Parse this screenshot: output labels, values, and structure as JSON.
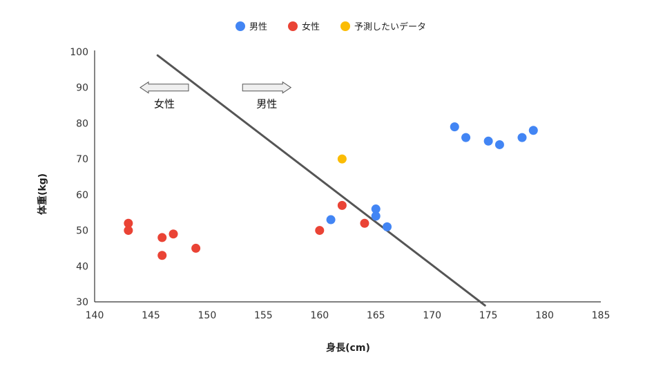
{
  "chart_data": {
    "type": "scatter",
    "title": "",
    "xlabel": "身長(cm)",
    "ylabel": "体重(kg)",
    "xlim": [
      140,
      185
    ],
    "ylim": [
      30,
      100
    ],
    "x_ticks": [
      140,
      145,
      150,
      155,
      160,
      165,
      170,
      175,
      180,
      185
    ],
    "y_ticks": [
      30,
      40,
      50,
      60,
      70,
      80,
      90,
      100
    ],
    "grid": false,
    "legend_position": "top",
    "series": [
      {
        "name": "男性",
        "color": "#4285F4",
        "points": [
          {
            "x": 161,
            "y": 53
          },
          {
            "x": 165,
            "y": 56
          },
          {
            "x": 165,
            "y": 54
          },
          {
            "x": 166,
            "y": 51
          },
          {
            "x": 172,
            "y": 79
          },
          {
            "x": 173,
            "y": 76
          },
          {
            "x": 175,
            "y": 75
          },
          {
            "x": 176,
            "y": 74
          },
          {
            "x": 178,
            "y": 76
          },
          {
            "x": 179,
            "y": 78
          }
        ]
      },
      {
        "name": "女性",
        "color": "#EA4335",
        "points": [
          {
            "x": 143,
            "y": 52
          },
          {
            "x": 143,
            "y": 50
          },
          {
            "x": 146,
            "y": 48
          },
          {
            "x": 146,
            "y": 43
          },
          {
            "x": 147,
            "y": 49
          },
          {
            "x": 149,
            "y": 45
          },
          {
            "x": 160,
            "y": 50
          },
          {
            "x": 162,
            "y": 57
          },
          {
            "x": 164,
            "y": 52
          }
        ]
      },
      {
        "name": "予測したいデータ",
        "color": "#FBBC04",
        "points": [
          {
            "x": 162,
            "y": 70
          }
        ]
      }
    ],
    "decision_line": {
      "color": "#555555",
      "from": {
        "x": 145.6,
        "y": 99
      },
      "to": {
        "x": 174.7,
        "y": 29
      }
    },
    "annotations": [
      {
        "text": "女性",
        "direction": "left",
        "x": 146.2,
        "y": 90
      },
      {
        "text": "男性",
        "direction": "right",
        "x": 155.3,
        "y": 90
      }
    ]
  }
}
